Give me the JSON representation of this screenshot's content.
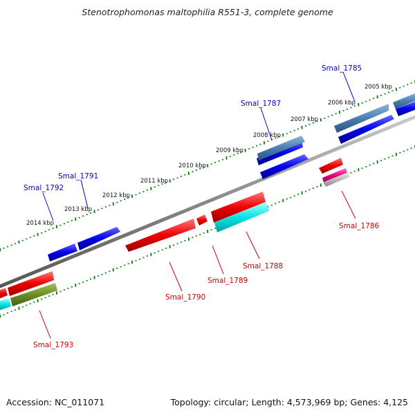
{
  "title": "Stenotrophomonas maltophilia R551-3, complete genome",
  "accession": "Accession: NC_011071",
  "summary": "Topology: circular; Length: 4,573,969 bp; Genes: 4,125",
  "colors": {
    "backbone": "#888888",
    "tick": "#007700",
    "forward_label": "#0000cc",
    "reverse_label": "#cc0000",
    "blue_gene": "#0000dd",
    "steel_gene": "#4a7fb0",
    "red_gene": "#ee0000",
    "cyan_gene": "#00e6e6",
    "olive_gene": "#6b8e23",
    "pink_gene": "#e6007e",
    "grey_gene": "#bbbbbb"
  },
  "kbp_labels": [
    "2005 kbp",
    "2006 kbp",
    "2007 kbp",
    "2008 kbp",
    "2009 kbp",
    "2010 kbp",
    "2011 kbp",
    "2012 kbp",
    "2013 kbp",
    "2014 kbp"
  ],
  "gene_labels": [
    "Smal_1785",
    "Smal_1786",
    "Smal_1787",
    "Smal_1788",
    "Smal_1789",
    "Smal_1790",
    "Smal_1791",
    "Smal_1792",
    "Smal_1793"
  ]
}
